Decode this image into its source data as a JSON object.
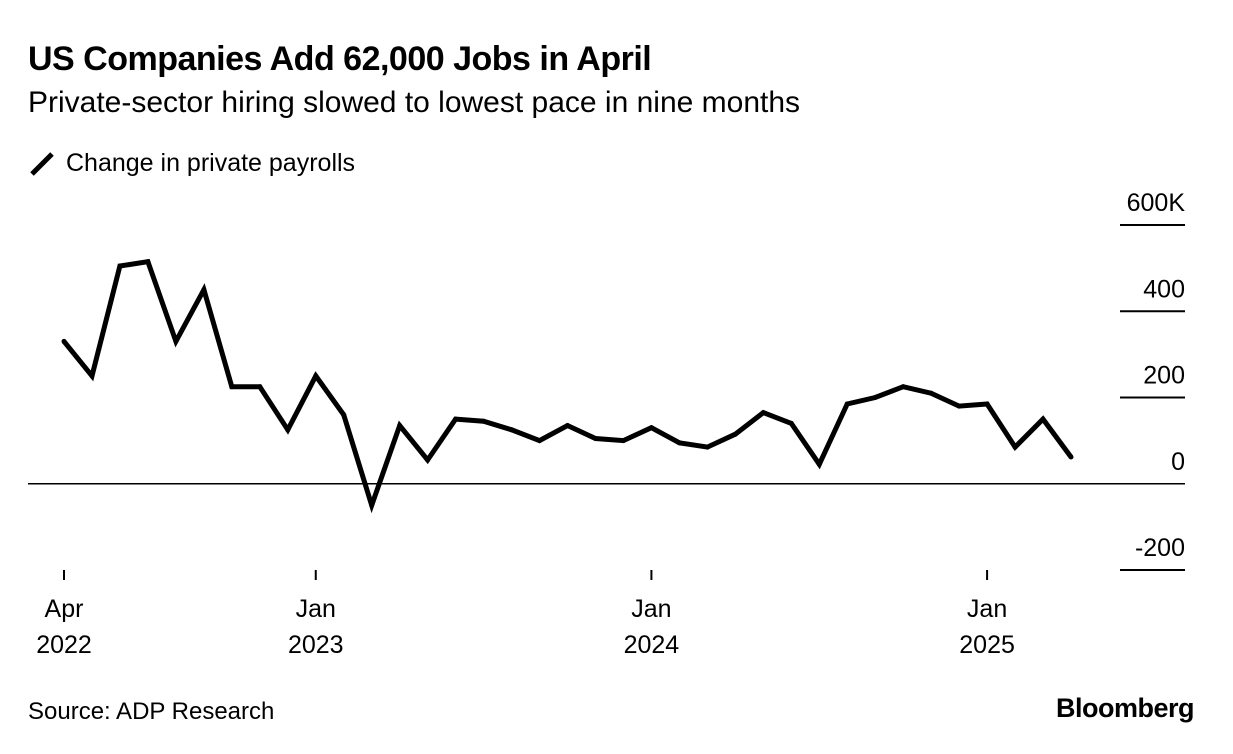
{
  "title": "US Companies Add 62,000 Jobs in April",
  "subtitle": "Private-sector hiring slowed to lowest pace in nine months",
  "legend": {
    "label": "Change in private payrolls",
    "icon": "line-swatch-icon"
  },
  "source": "Source: ADP Research",
  "brand": "Bloomberg",
  "colors": {
    "series": "#000000",
    "zero_line": "#000000",
    "background": "#ffffff"
  },
  "chart_data": {
    "type": "line",
    "title": "US Companies Add 62,000 Jobs in April",
    "subtitle": "Private-sector hiring slowed to lowest pace in nine months",
    "xlabel": "",
    "ylabel": "",
    "x": [
      "2022-04",
      "2022-05",
      "2022-06",
      "2022-07",
      "2022-08",
      "2022-09",
      "2022-10",
      "2022-11",
      "2022-12",
      "2023-01",
      "2023-02",
      "2023-03",
      "2023-04",
      "2023-05",
      "2023-06",
      "2023-07",
      "2023-08",
      "2023-09",
      "2023-10",
      "2023-11",
      "2023-12",
      "2024-01",
      "2024-02",
      "2024-03",
      "2024-04",
      "2024-05",
      "2024-06",
      "2024-07",
      "2024-08",
      "2024-09",
      "2024-10",
      "2024-11",
      "2024-12",
      "2025-01",
      "2025-02",
      "2025-03",
      "2025-04"
    ],
    "series": [
      {
        "name": "Change in private payrolls",
        "values": [
          330,
          250,
          505,
          515,
          330,
          450,
          225,
          225,
          125,
          250,
          160,
          -50,
          135,
          55,
          150,
          145,
          125,
          100,
          135,
          105,
          100,
          130,
          95,
          85,
          115,
          165,
          140,
          45,
          185,
          200,
          225,
          210,
          180,
          185,
          85,
          150,
          62
        ]
      }
    ],
    "ylim": [
      -200,
      600
    ],
    "yticks": [
      -200,
      0,
      200,
      400,
      600
    ],
    "ytick_labels": [
      "-200",
      "0",
      "200",
      "400",
      "600K"
    ],
    "xticks": [
      {
        "x": "2022-04",
        "label_top": "Apr",
        "label_bottom": "2022"
      },
      {
        "x": "2023-01",
        "label_top": "Jan",
        "label_bottom": "2023"
      },
      {
        "x": "2024-01",
        "label_top": "Jan",
        "label_bottom": "2024"
      },
      {
        "x": "2025-01",
        "label_top": "Jan",
        "label_bottom": "2025"
      }
    ],
    "grid": false,
    "zero_line": true,
    "legend_position": "top-left"
  }
}
